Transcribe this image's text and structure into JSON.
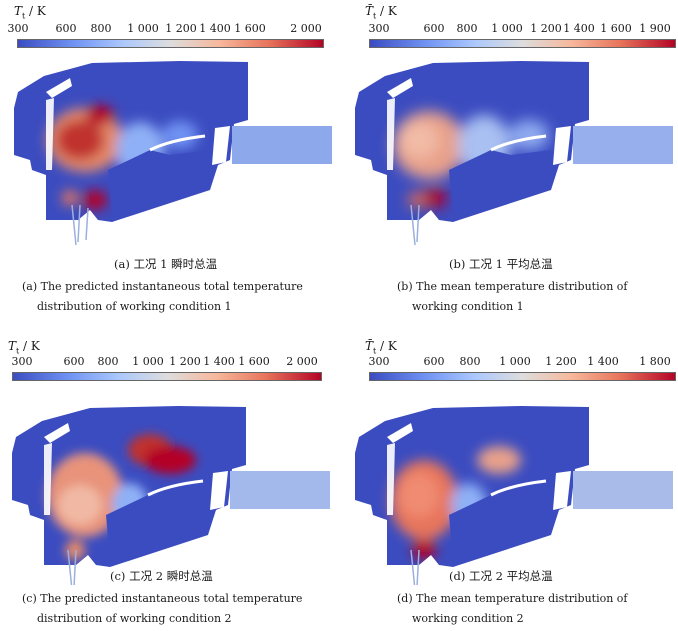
{
  "panels": [
    {
      "id": "a",
      "cb_symbol": "T",
      "cb_sub": "t",
      "cb_unit": " / K",
      "cb_ticks": [
        "300",
        "600",
        "800",
        "1 000",
        "1 200",
        "1 400",
        "1 600",
        "2 000"
      ],
      "caption_cn": "(a) 工况 1 瞬时总温",
      "caption_en_1": "(a)  The predicted instantaneous total temperature",
      "caption_en_2": "distribution of working condition 1"
    },
    {
      "id": "b",
      "cb_symbol": "T̄",
      "cb_sub": "t",
      "cb_unit": " / K",
      "cb_ticks": [
        "300",
        "600",
        "800",
        "1 000",
        "1 200",
        "1 400",
        "1 600",
        "1 900"
      ],
      "caption_cn": "(b) 工况 1 平均总温",
      "caption_en_1": "(b)  The mean temperature distribution of",
      "caption_en_2": "working condition 1"
    },
    {
      "id": "c",
      "cb_symbol": "T",
      "cb_sub": "t",
      "cb_unit": " / K",
      "cb_ticks": [
        "300",
        "600",
        "800",
        "1 000",
        "1 200",
        "1 400",
        "1 600",
        "2 000"
      ],
      "caption_cn": "(c) 工况 2 瞬时总温",
      "caption_en_1": "(c)  The predicted instantaneous total temperature",
      "caption_en_2": "distribution of working condition 2"
    },
    {
      "id": "d",
      "cb_symbol": "T̄",
      "cb_sub": "t",
      "cb_unit": " / K",
      "cb_ticks": [
        "300",
        "600",
        "800",
        "1 000",
        "1 200",
        "1 400",
        "1 800"
      ],
      "caption_cn": "(d) 工况 2 平均总温",
      "caption_en_1": "(d)  The mean temperature distribution of",
      "caption_en_2": "working condition 2"
    }
  ],
  "colors": {
    "cold": "#3b4cc0",
    "hot": "#b40426",
    "mid": "#dddddd"
  }
}
